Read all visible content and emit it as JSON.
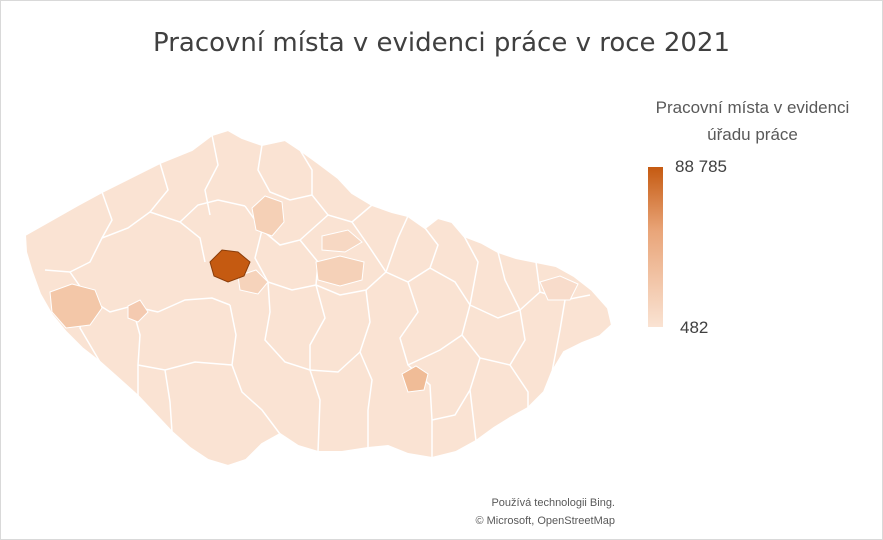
{
  "title": "Pracovní místa v evidenci práce v roce 2021",
  "legend": {
    "title_line1": "Pracovní místa v evidenci",
    "title_line2": "úřadu práce",
    "max": "88 785",
    "min": "482"
  },
  "attribution": {
    "line1": "Používá technologii Bing.",
    "line2": "© Microsoft, OpenStreetMap"
  },
  "colors": {
    "max": "#c55a11",
    "min": "#fae3d3",
    "border": "#ffffff"
  },
  "map_data": {
    "country": "Czech Republic",
    "measure": "Pracovní místa v evidenci úřadu práce",
    "scale_min": 482,
    "scale_max": 88785,
    "highlighted_districts": [
      {
        "area": "Prague",
        "level": 1.0
      },
      {
        "area": "Plzeň region",
        "level": 0.15
      },
      {
        "area": "Brno",
        "level": 0.2
      },
      {
        "area": "Hradec Králové region",
        "level": 0.1
      },
      {
        "area": "Mladá Boleslav region",
        "level": 0.12
      }
    ]
  }
}
